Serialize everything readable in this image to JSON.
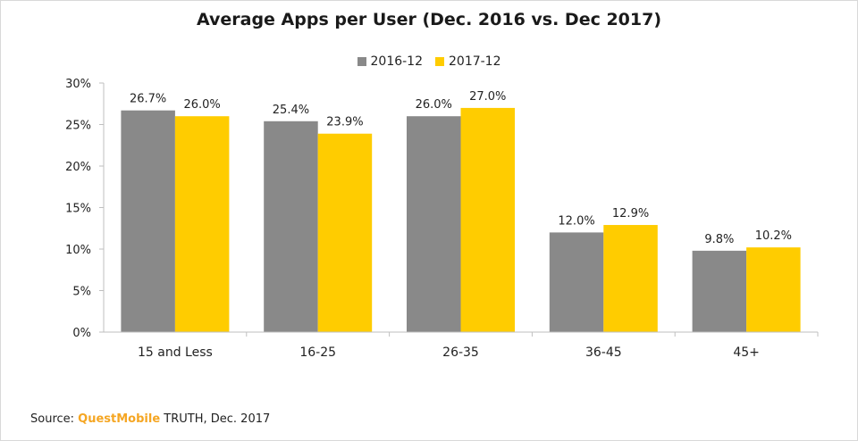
{
  "title": "Average Apps per User (Dec. 2016 vs. Dec 2017)",
  "source": {
    "prefix": "Source: ",
    "brand": "QuestMobile",
    "suffix": " TRUTH, Dec. 2017"
  },
  "colors": {
    "series_2016": "#898989",
    "series_2017": "#ffcc00",
    "brand": "#f5a623"
  },
  "chart_data": {
    "type": "bar",
    "title": "Average Apps per User (Dec. 2016 vs. Dec 2017)",
    "categories": [
      "15 and Less",
      "16-25",
      "26-35",
      "36-45",
      "45+"
    ],
    "series": [
      {
        "name": "2016-12",
        "values": [
          26.7,
          25.4,
          26.0,
          12.0,
          9.8
        ],
        "labels": [
          "26.7%",
          "25.4%",
          "26.0%",
          "12.0%",
          "9.8%"
        ]
      },
      {
        "name": "2017-12",
        "values": [
          26.0,
          23.9,
          27.0,
          12.9,
          10.2
        ],
        "labels": [
          "26.0%",
          "23.9%",
          "27.0%",
          "12.9%",
          "10.2%"
        ]
      }
    ],
    "ylim": [
      0,
      30
    ],
    "yticks": [
      "0%",
      "5%",
      "10%",
      "15%",
      "20%",
      "25%",
      "30%"
    ],
    "ytick_values": [
      0,
      5,
      10,
      15,
      20,
      25,
      30
    ],
    "xlabel": "",
    "ylabel": "",
    "grid": false,
    "legend_position": "top-center"
  }
}
